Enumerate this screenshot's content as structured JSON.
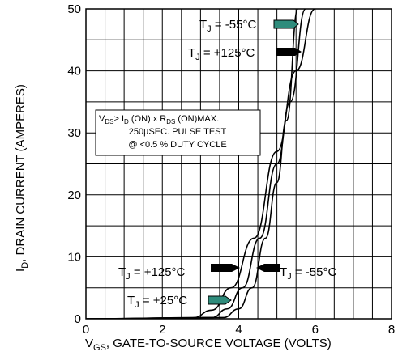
{
  "chart_data": {
    "type": "line",
    "xlabel": "V",
    "xlabel_sub": "GS",
    "xlabel_rest": ", GATE-TO-SOURCE VOLTAGE (VOLTS)",
    "ylabel": "I",
    "ylabel_sub": "D",
    "ylabel_rest": ", DRAIN CURRENT (AMPERES)",
    "xlim": [
      0,
      8
    ],
    "ylim": [
      0,
      50
    ],
    "xticks": [
      "0",
      "2",
      "4",
      "6",
      "8"
    ],
    "yticks": [
      "0",
      "10",
      "20",
      "30",
      "40",
      "50"
    ],
    "grid": true,
    "series": [
      {
        "name": "T_J = +125°C",
        "points": [
          [
            0,
            0
          ],
          [
            2.8,
            0.15
          ],
          [
            3.3,
            1.4
          ],
          [
            3.8,
            5
          ],
          [
            4.4,
            13
          ],
          [
            5.0,
            27
          ],
          [
            5.5,
            40
          ],
          [
            6.0,
            50
          ]
        ]
      },
      {
        "name": "T_J = +25°C",
        "points": [
          [
            0,
            0
          ],
          [
            3.3,
            0.2
          ],
          [
            3.7,
            1.6
          ],
          [
            4.1,
            5
          ],
          [
            4.55,
            13
          ],
          [
            5.0,
            25
          ],
          [
            5.35,
            35
          ],
          [
            5.75,
            50
          ]
        ]
      },
      {
        "name": "T_J = -55°C",
        "points": [
          [
            0,
            0
          ],
          [
            3.6,
            0.2
          ],
          [
            4.0,
            1.6
          ],
          [
            4.35,
            5
          ],
          [
            4.7,
            13
          ],
          [
            5.0,
            22
          ],
          [
            5.25,
            32
          ],
          [
            5.55,
            50
          ]
        ]
      }
    ],
    "annotation_box": {
      "line1_a": "V",
      "line1_a_sub": "DS",
      "line1_b": "> I",
      "line1_b_sub": "D",
      "line1_c": " (ON) x  R",
      "line1_c_sub": "DS",
      "line1_d": " (ON)MAX.",
      "line2": "250µSEC. PULSE TEST",
      "line3": "@ <0.5 % DUTY CYCLE"
    },
    "labels": [
      {
        "id": "tj-m55-top",
        "text_a": "T",
        "text_sub": "J",
        "text_b": " = -55°C"
      },
      {
        "id": "tj-125-top",
        "text_a": "T",
        "text_sub": "J",
        "text_b": " = +125°C"
      },
      {
        "id": "tj-125-bot",
        "text_a": "T",
        "text_sub": "J",
        "text_b": " = +125°C"
      },
      {
        "id": "tj-m55-bot",
        "text_a": "T",
        "text_sub": "J",
        "text_b": " = -55°C"
      },
      {
        "id": "tj-25-bot",
        "text_a": "T",
        "text_sub": "J",
        "text_b": " = +25°C"
      }
    ],
    "colors": {
      "teal_arrow": "#2f8c7c",
      "black_arrow": "#000000"
    }
  }
}
